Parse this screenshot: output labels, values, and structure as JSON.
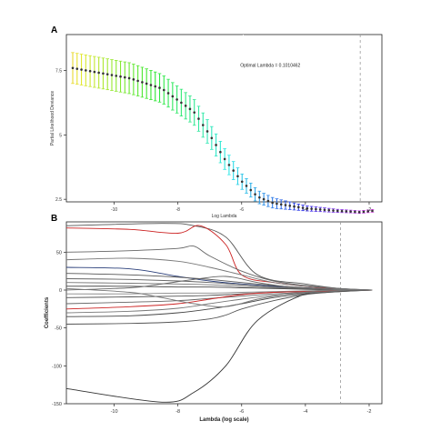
{
  "chart_data": [
    {
      "type": "errorbar",
      "panel_label": "A",
      "xlabel": "Log Lambda",
      "ylabel": "Partial Likelihood Deviance",
      "annotation": "Optimal Lambda = 0.1010462",
      "xlim": [
        -11.5,
        -1.6
      ],
      "ylim": [
        2.4,
        8.9
      ],
      "x_ticks": [
        -10,
        -8,
        -6,
        -4,
        -2
      ],
      "y_ticks": [
        7.5,
        5.0,
        2.5
      ],
      "y_tick_labels": [
        "7.5",
        "5",
        "2.5"
      ],
      "vlines": [
        -5.95,
        -2.28
      ],
      "vline_style": "dashed",
      "grid": false,
      "points": {
        "x_start": -11.3,
        "x_end": -1.9,
        "count": 70,
        "curve": "deviance decreases from about 7.6 at log lambda -11.3 to a minimum near 2.0 around log lambda -2.3",
        "x": [
          -11.3,
          -9.5,
          -8.5,
          -7.5,
          -7.0,
          -6.5,
          -6.0,
          -5.5,
          -5.0,
          -4.5,
          -4.0,
          -3.5,
          -3.0,
          -2.5,
          -2.3,
          -1.9
        ],
        "y": [
          7.6,
          7.2,
          6.8,
          5.9,
          5.0,
          4.0,
          3.2,
          2.6,
          2.35,
          2.25,
          2.15,
          2.1,
          2.05,
          2.02,
          2.0,
          2.05
        ],
        "error": [
          0.6,
          0.6,
          0.55,
          0.5,
          0.45,
          0.4,
          0.3,
          0.25,
          0.2,
          0.15,
          0.1,
          0.08,
          0.06,
          0.05,
          0.05,
          0.05
        ]
      }
    },
    {
      "type": "line",
      "panel_label": "B",
      "xlabel": "Lambda (log scale)",
      "ylabel": "Coefficients",
      "xlim": [
        -11.5,
        -1.6
      ],
      "ylim": [
        -150,
        90
      ],
      "x_ticks": [
        -10,
        -8,
        -6,
        -4,
        -2
      ],
      "y_ticks": [
        50,
        0,
        -50,
        -100,
        -150
      ],
      "vlines": [
        -2.9
      ],
      "vline_style": "dashed",
      "grid": false,
      "series": [
        {
          "color": "#333333",
          "x": [
            -11.5,
            -8.5,
            -7.5,
            -6.5,
            -5.5,
            -4.0,
            -2.9,
            -1.9
          ],
          "y": [
            -130,
            -148,
            -135,
            -100,
            -40,
            -5,
            0,
            0
          ]
        },
        {
          "color": "#555555",
          "x": [
            -11.5,
            -8.5,
            -7.5,
            -6.5,
            -5.5,
            -4.0,
            -2.9,
            -1.9
          ],
          "y": [
            85,
            88,
            85,
            70,
            20,
            8,
            2,
            0
          ]
        },
        {
          "color": "#cc2222",
          "x": [
            -11.5,
            -9.5,
            -8.0,
            -7.3,
            -6.5,
            -6.0,
            -5.0,
            -4.0,
            -2.9,
            -1.9
          ],
          "y": [
            82,
            80,
            75,
            85,
            60,
            20,
            10,
            5,
            1,
            0
          ]
        },
        {
          "color": "#666666",
          "x": [
            -11.5,
            -9.5,
            -8.0,
            -7.5,
            -7.0,
            -6.0,
            -5.0,
            -4.0,
            -2.9,
            -1.9
          ],
          "y": [
            50,
            52,
            55,
            58,
            45,
            25,
            12,
            6,
            2,
            0
          ]
        },
        {
          "color": "#777777",
          "x": [
            -11.5,
            -9.5,
            -8.0,
            -7.0,
            -6.0,
            -5.0,
            -4.0,
            -2.9,
            -1.9
          ],
          "y": [
            40,
            42,
            38,
            30,
            20,
            10,
            5,
            2,
            0
          ]
        },
        {
          "color": "#2a3f7a",
          "x": [
            -11.5,
            -9.5,
            -8.0,
            -7.0,
            -6.0,
            -5.0,
            -4.0,
            -2.9,
            -1.9
          ],
          "y": [
            30,
            28,
            18,
            12,
            8,
            5,
            3,
            1,
            0
          ]
        },
        {
          "color": "#555555",
          "x": [
            -11.5,
            -9.5,
            -8.0,
            -7.0,
            -6.0,
            -5.0,
            -4.0,
            -2.9,
            -1.9
          ],
          "y": [
            22,
            20,
            17,
            14,
            10,
            6,
            3,
            1,
            0
          ]
        },
        {
          "color": "#666666",
          "x": [
            -11.5,
            -9.5,
            -8.0,
            -7.0,
            -6.0,
            -5.0,
            -4.0,
            -2.9,
            -1.9
          ],
          "y": [
            15,
            14,
            12,
            10,
            7,
            4,
            2,
            1,
            0
          ]
        },
        {
          "color": "#777777",
          "x": [
            -11.5,
            -9.5,
            -8.0,
            -7.0,
            -6.0,
            -5.0,
            -4.0,
            -2.9,
            -1.9
          ],
          "y": [
            10,
            9,
            8,
            7,
            5,
            3,
            2,
            1,
            0
          ]
        },
        {
          "color": "#444444",
          "x": [
            -11.5,
            -9.5,
            -8.0,
            -7.0,
            -6.0,
            -5.0,
            -4.0,
            -2.9,
            -1.9
          ],
          "y": [
            5,
            5,
            4,
            4,
            3,
            2,
            1,
            0,
            0
          ]
        },
        {
          "color": "#888888",
          "x": [
            -11.5,
            -9.5,
            -8.0,
            -7.0,
            -6.0,
            -5.0,
            -4.0,
            -2.9,
            -1.9
          ],
          "y": [
            -5,
            -5,
            -4,
            -4,
            -3,
            -2,
            -1,
            0,
            0
          ]
        },
        {
          "color": "#555555",
          "x": [
            -11.5,
            -9.5,
            -8.0,
            -7.0,
            -6.0,
            -5.0,
            -4.0,
            -2.9,
            -1.9
          ],
          "y": [
            -10,
            -9,
            -8,
            -7,
            -5,
            -3,
            -2,
            -1,
            0
          ]
        },
        {
          "color": "#666666",
          "x": [
            -11.5,
            -9.5,
            -8.0,
            -7.0,
            -6.0,
            -5.0,
            -4.0,
            -2.9,
            -1.9
          ],
          "y": [
            -18,
            -16,
            -14,
            -11,
            -8,
            -5,
            -3,
            -1,
            0
          ]
        },
        {
          "color": "#cc2222",
          "x": [
            -11.5,
            -9.5,
            -8.0,
            -7.0,
            -6.0,
            -5.0,
            -4.0,
            -2.9,
            -1.9
          ],
          "y": [
            -25,
            -22,
            -18,
            -12,
            -6,
            -3,
            -2,
            -1,
            0
          ]
        },
        {
          "color": "#777777",
          "x": [
            -11.5,
            -9.5,
            -8.0,
            -7.0,
            -6.0,
            -5.0,
            -4.0,
            -2.9,
            -1.9
          ],
          "y": [
            -30,
            -28,
            -24,
            -18,
            -12,
            -7,
            -4,
            -1,
            0
          ]
        },
        {
          "color": "#444444",
          "x": [
            -11.5,
            -9.5,
            -8.0,
            -7.0,
            -6.0,
            -5.0,
            -4.0,
            -2.9,
            -1.9
          ],
          "y": [
            -35,
            -34,
            -30,
            -25,
            -18,
            -10,
            -5,
            -2,
            0
          ]
        },
        {
          "color": "#555555",
          "x": [
            -11.5,
            -9.5,
            -8.0,
            -7.0,
            -6.5,
            -6.0,
            -5.0,
            -4.0,
            -2.9,
            -1.9
          ],
          "y": [
            -45,
            -44,
            -42,
            -38,
            -33,
            -25,
            -14,
            -6,
            -2,
            0
          ]
        },
        {
          "color": "#666666",
          "x": [
            -11.5,
            -9.5,
            -8.5,
            -7.5,
            -6.5,
            -5.5,
            -4.5,
            -3.5,
            -2.9,
            -1.9
          ],
          "y": [
            0,
            3,
            8,
            14,
            18,
            10,
            4,
            1,
            0,
            0
          ]
        },
        {
          "color": "#777777",
          "x": [
            -11.5,
            -9.5,
            -8.5,
            -7.5,
            -6.5,
            -5.5,
            -4.5,
            -3.5,
            -2.9,
            -1.9
          ],
          "y": [
            2,
            -3,
            -10,
            -18,
            -22,
            -12,
            -5,
            -1,
            0,
            0
          ]
        }
      ]
    }
  ]
}
